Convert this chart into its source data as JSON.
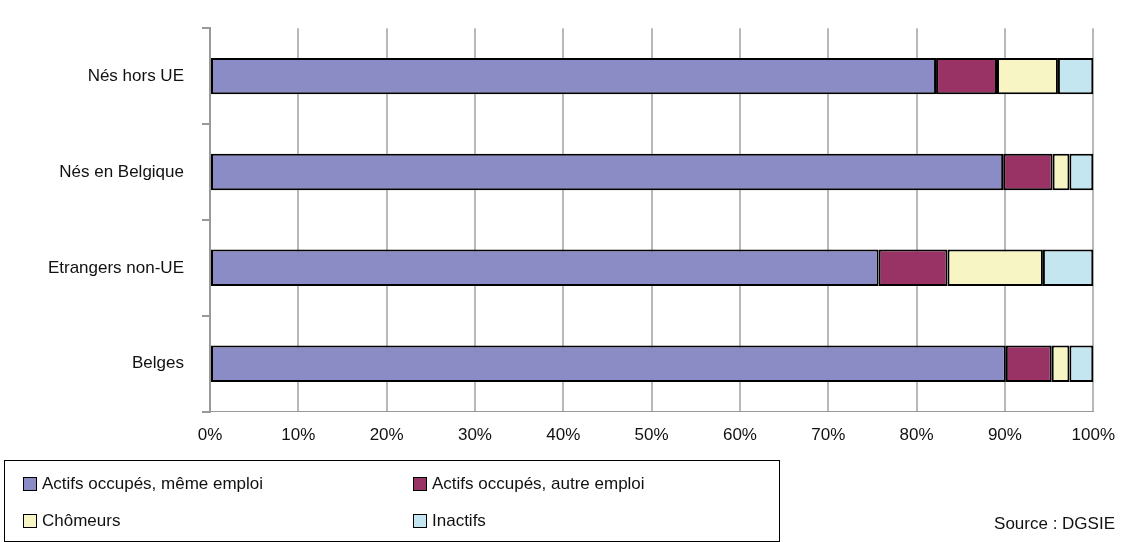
{
  "chart_data": {
    "type": "bar",
    "orientation": "horizontal",
    "stacked": true,
    "categories": [
      "Nés hors UE",
      "Nés en Belgique",
      "Etrangers non-UE",
      "Belges"
    ],
    "series": [
      {
        "name": "Actifs occupés, même emploi",
        "color": "#8b8bc5",
        "values": [
          82.2,
          89.8,
          75.7,
          90.1
        ]
      },
      {
        "name": "Actifs occupés, autre emploi",
        "color": "#993366",
        "values": [
          6.9,
          5.6,
          7.8,
          5.2
        ]
      },
      {
        "name": "Chômeurs",
        "color": "#f7f5c3",
        "values": [
          6.9,
          1.9,
          10.8,
          2.0
        ]
      },
      {
        "name": "Inactifs",
        "color": "#c3e6f0",
        "values": [
          4.0,
          2.7,
          5.7,
          2.7
        ]
      }
    ],
    "xlim": [
      0,
      100
    ],
    "xticks": [
      {
        "value": 0,
        "label": "0%"
      },
      {
        "value": 10,
        "label": "10%"
      },
      {
        "value": 20,
        "label": "20%"
      },
      {
        "value": 30,
        "label": "30%"
      },
      {
        "value": 40,
        "label": "40%"
      },
      {
        "value": 50,
        "label": "50%"
      },
      {
        "value": 60,
        "label": "60%"
      },
      {
        "value": 70,
        "label": "70%"
      },
      {
        "value": 80,
        "label": "80%"
      },
      {
        "value": 90,
        "label": "90%"
      },
      {
        "value": 100,
        "label": "100%"
      }
    ],
    "grid": "x",
    "legend": "bottom left",
    "annotations": [
      "Source : DGSIE"
    ]
  }
}
